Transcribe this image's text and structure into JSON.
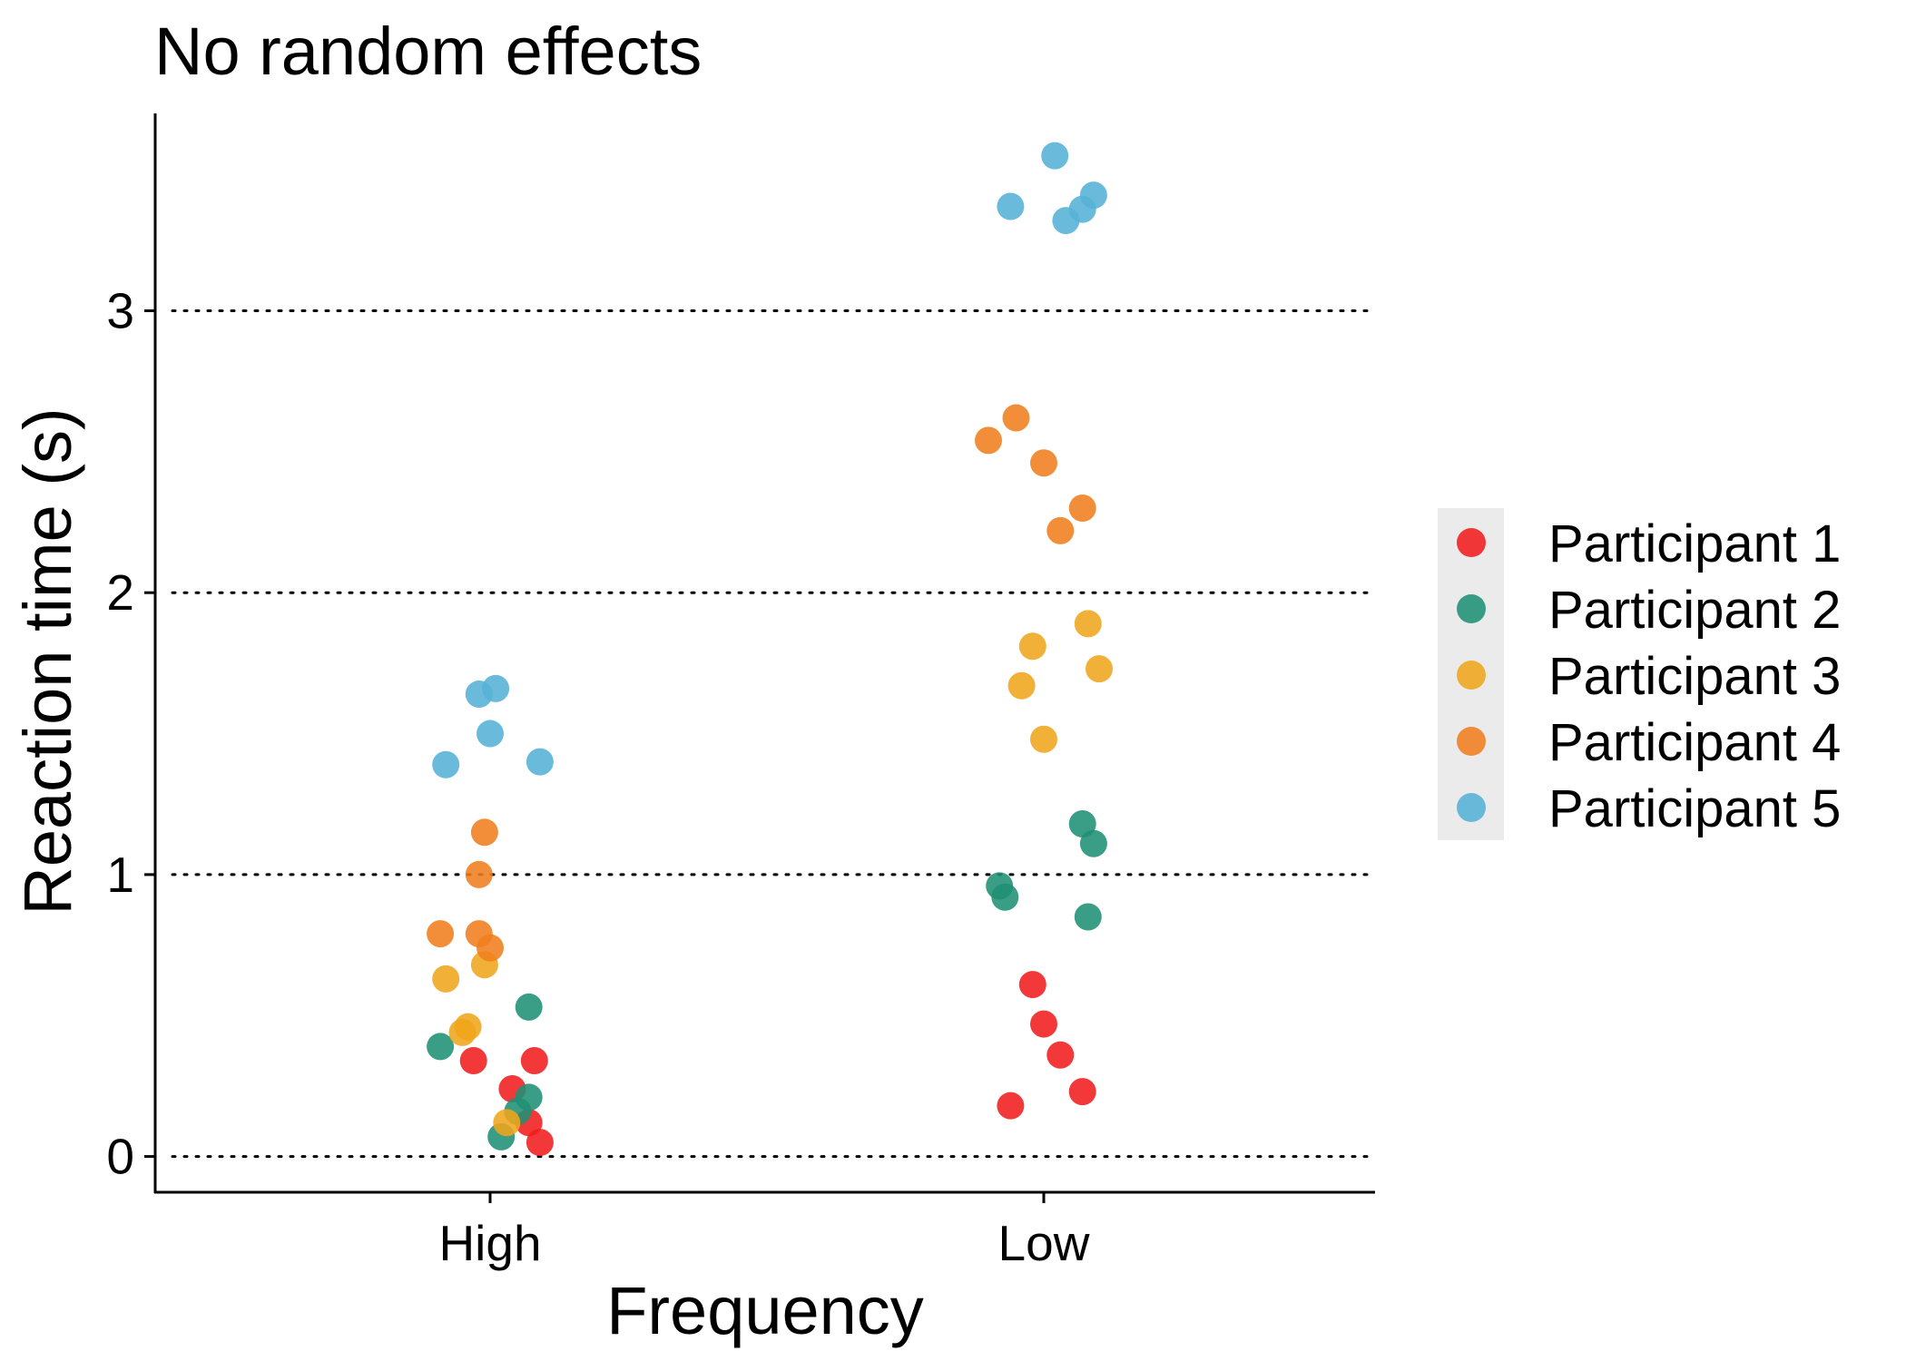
{
  "chart_data": {
    "type": "scatter",
    "title": "No random effects",
    "xlabel": "Frequency",
    "ylabel": "Reaction time (s)",
    "categories": [
      "High",
      "Low"
    ],
    "yticks": [
      0,
      1,
      2,
      3
    ],
    "ylim": [
      -0.13,
      3.7
    ],
    "grid": "horizontal dotted",
    "legend_position": "right",
    "series": [
      {
        "name": "Participant 1",
        "color": "#F01C1C",
        "points": [
          {
            "x": "High",
            "jitter": -0.03,
            "y": 0.34
          },
          {
            "x": "High",
            "jitter": 0.04,
            "y": 0.24
          },
          {
            "x": "High",
            "jitter": 0.07,
            "y": 0.12
          },
          {
            "x": "High",
            "jitter": 0.08,
            "y": 0.34
          },
          {
            "x": "High",
            "jitter": 0.09,
            "y": 0.05
          },
          {
            "x": "Low",
            "jitter": -0.06,
            "y": 0.18
          },
          {
            "x": "Low",
            "jitter": -0.02,
            "y": 0.61
          },
          {
            "x": "Low",
            "jitter": 0.0,
            "y": 0.47
          },
          {
            "x": "Low",
            "jitter": 0.03,
            "y": 0.36
          },
          {
            "x": "Low",
            "jitter": 0.07,
            "y": 0.23
          }
        ]
      },
      {
        "name": "Participant 2",
        "color": "#1F8F74",
        "points": [
          {
            "x": "High",
            "jitter": -0.09,
            "y": 0.39
          },
          {
            "x": "High",
            "jitter": 0.02,
            "y": 0.07
          },
          {
            "x": "High",
            "jitter": 0.05,
            "y": 0.16
          },
          {
            "x": "High",
            "jitter": 0.07,
            "y": 0.21
          },
          {
            "x": "High",
            "jitter": 0.07,
            "y": 0.53
          },
          {
            "x": "Low",
            "jitter": -0.08,
            "y": 0.96
          },
          {
            "x": "Low",
            "jitter": -0.07,
            "y": 0.92
          },
          {
            "x": "Low",
            "jitter": 0.07,
            "y": 1.18
          },
          {
            "x": "Low",
            "jitter": 0.08,
            "y": 0.85
          },
          {
            "x": "Low",
            "jitter": 0.09,
            "y": 1.11
          }
        ]
      },
      {
        "name": "Participant 3",
        "color": "#EFA51B",
        "points": [
          {
            "x": "High",
            "jitter": -0.08,
            "y": 0.63
          },
          {
            "x": "High",
            "jitter": -0.05,
            "y": 0.44
          },
          {
            "x": "High",
            "jitter": -0.04,
            "y": 0.46
          },
          {
            "x": "High",
            "jitter": -0.01,
            "y": 0.68
          },
          {
            "x": "High",
            "jitter": 0.03,
            "y": 0.12
          },
          {
            "x": "Low",
            "jitter": -0.04,
            "y": 1.67
          },
          {
            "x": "Low",
            "jitter": -0.02,
            "y": 1.81
          },
          {
            "x": "Low",
            "jitter": 0.0,
            "y": 1.48
          },
          {
            "x": "Low",
            "jitter": 0.08,
            "y": 1.89
          },
          {
            "x": "Low",
            "jitter": 0.1,
            "y": 1.73
          }
        ]
      },
      {
        "name": "Participant 4",
        "color": "#F07E1E",
        "points": [
          {
            "x": "High",
            "jitter": -0.09,
            "y": 0.79
          },
          {
            "x": "High",
            "jitter": -0.02,
            "y": 1.0
          },
          {
            "x": "High",
            "jitter": -0.02,
            "y": 0.79
          },
          {
            "x": "High",
            "jitter": -0.01,
            "y": 1.15
          },
          {
            "x": "High",
            "jitter": 0.0,
            "y": 0.74
          },
          {
            "x": "Low",
            "jitter": -0.1,
            "y": 2.54
          },
          {
            "x": "Low",
            "jitter": -0.05,
            "y": 2.62
          },
          {
            "x": "Low",
            "jitter": 0.0,
            "y": 2.46
          },
          {
            "x": "Low",
            "jitter": 0.03,
            "y": 2.22
          },
          {
            "x": "Low",
            "jitter": 0.07,
            "y": 2.3
          }
        ]
      },
      {
        "name": "Participant 5",
        "color": "#55B2D6",
        "points": [
          {
            "x": "High",
            "jitter": -0.08,
            "y": 1.39
          },
          {
            "x": "High",
            "jitter": -0.02,
            "y": 1.64
          },
          {
            "x": "High",
            "jitter": 0.0,
            "y": 1.5
          },
          {
            "x": "High",
            "jitter": 0.01,
            "y": 1.66
          },
          {
            "x": "High",
            "jitter": 0.09,
            "y": 1.4
          },
          {
            "x": "Low",
            "jitter": -0.06,
            "y": 3.37
          },
          {
            "x": "Low",
            "jitter": 0.02,
            "y": 3.55
          },
          {
            "x": "Low",
            "jitter": 0.04,
            "y": 3.32
          },
          {
            "x": "Low",
            "jitter": 0.07,
            "y": 3.36
          },
          {
            "x": "Low",
            "jitter": 0.09,
            "y": 3.41
          }
        ]
      }
    ]
  }
}
